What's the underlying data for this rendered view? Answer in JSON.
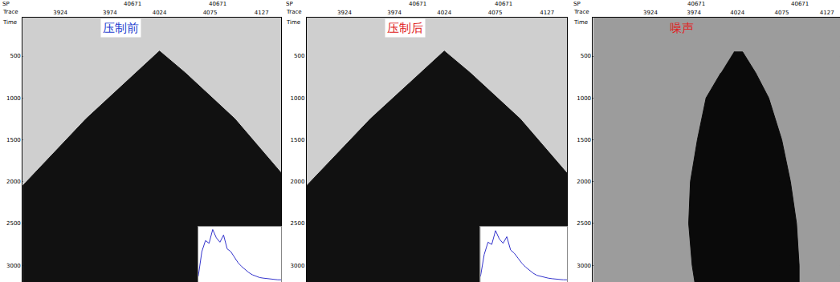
{
  "chart_data": [
    {
      "type": "filled_polygon",
      "title": "压制前",
      "x_label": "Trace",
      "y_label": "Time",
      "sp_label": "SP",
      "sp_ticks": [
        {
          "value": 3997,
          "label": "40671"
        },
        {
          "value": 4083,
          "label": "40671"
        }
      ],
      "xlim": [
        3886,
        4147
      ],
      "xticks": [
        3924,
        3974,
        4024,
        4075,
        4127
      ],
      "ylim": [
        40,
        3200
      ],
      "yticks": [
        500,
        1000,
        1500,
        2000,
        2500,
        3000
      ],
      "grid": true,
      "color": "#111111",
      "x": [
        3886,
        3886,
        3950,
        4000,
        4024,
        4050,
        4100,
        4147,
        4147
      ],
      "values": [
        3200,
        2050,
        1250,
        700,
        440,
        700,
        1250,
        1900,
        3200
      ],
      "inset": {
        "type": "line",
        "xlim": [
          0,
          23
        ],
        "ylim": [
          0,
          1
        ],
        "tick_labels": false,
        "color": "#3333cc",
        "x": [
          0,
          1,
          2,
          3,
          4,
          5,
          6,
          7,
          8,
          9,
          10,
          11,
          12,
          13,
          14,
          15,
          16,
          17,
          18,
          19,
          20,
          21,
          22,
          23
        ],
        "values": [
          0.1,
          0.55,
          0.75,
          0.7,
          0.95,
          0.8,
          0.72,
          0.85,
          0.6,
          0.55,
          0.45,
          0.35,
          0.28,
          0.22,
          0.17,
          0.13,
          0.1,
          0.08,
          0.07,
          0.06,
          0.05,
          0.05,
          0.04,
          0.04
        ]
      }
    },
    {
      "type": "filled_polygon",
      "title": "压制后",
      "x_label": "Trace",
      "y_label": "Time",
      "sp_label": "SP",
      "sp_ticks": [
        {
          "value": 3997,
          "label": "40671"
        },
        {
          "value": 4083,
          "label": "40671"
        }
      ],
      "xlim": [
        3886,
        4147
      ],
      "xticks": [
        3924,
        3974,
        4024,
        4075,
        4127
      ],
      "ylim": [
        40,
        3200
      ],
      "yticks": [
        500,
        1000,
        1500,
        2000,
        2500,
        3000
      ],
      "grid": true,
      "color": "#111111",
      "x": [
        3886,
        3886,
        3950,
        4000,
        4024,
        4050,
        4100,
        4147,
        4147
      ],
      "values": [
        3200,
        2050,
        1250,
        700,
        440,
        700,
        1250,
        1900,
        3200
      ],
      "inset": {
        "type": "line",
        "xlim": [
          0,
          23
        ],
        "ylim": [
          0,
          1
        ],
        "tick_labels": false,
        "color": "#3333cc",
        "x": [
          0,
          1,
          2,
          3,
          4,
          5,
          6,
          7,
          8,
          9,
          10,
          11,
          12,
          13,
          14,
          15,
          16,
          17,
          18,
          19,
          20,
          21,
          22,
          23
        ],
        "values": [
          0.1,
          0.5,
          0.72,
          0.68,
          0.93,
          0.78,
          0.7,
          0.82,
          0.58,
          0.52,
          0.43,
          0.34,
          0.27,
          0.21,
          0.16,
          0.12,
          0.1,
          0.08,
          0.07,
          0.06,
          0.05,
          0.05,
          0.04,
          0.04
        ]
      }
    },
    {
      "type": "filled_polygon",
      "title": "噪声",
      "x_label": "Trace",
      "y_label": "Time",
      "sp_label": "SP",
      "sp_ticks": [
        {
          "value": 3977,
          "label": "40671"
        },
        {
          "value": 4096,
          "label": "40671"
        }
      ],
      "xlim": [
        3858,
        4142
      ],
      "xticks": [
        3924,
        3974,
        4024,
        4075,
        4127
      ],
      "ylim": [
        40,
        3200
      ],
      "yticks": [
        500,
        1000,
        1500,
        2000,
        2500,
        3000
      ],
      "grid": true,
      "color": "#0a0a0a",
      "x": [
        4020,
        4030,
        4045,
        4060,
        4075,
        4085,
        4092,
        4095,
        4095,
        3975,
        3972,
        3968,
        3970,
        3978,
        3988,
        4005
      ],
      "values": [
        450,
        450,
        700,
        1000,
        1500,
        2000,
        2500,
        3000,
        3200,
        3200,
        3000,
        2500,
        2000,
        1500,
        1000,
        700
      ]
    }
  ]
}
